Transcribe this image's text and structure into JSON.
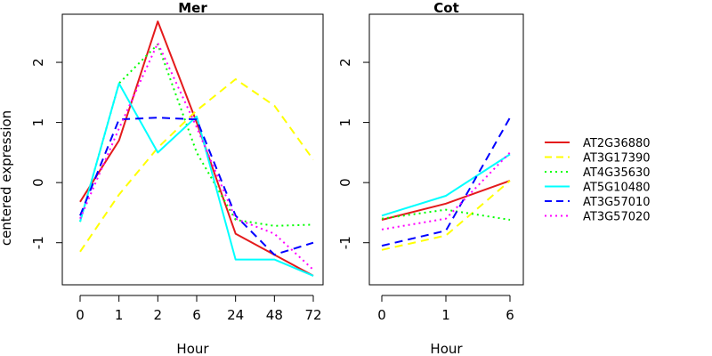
{
  "chart_data": [
    {
      "type": "line",
      "title": "Mer",
      "xlabel": "Hour",
      "ylabel": "centered expression",
      "categories": [
        "0",
        "1",
        "2",
        "6",
        "24",
        "48",
        "72"
      ],
      "ylim": [
        -1.7,
        2.8
      ],
      "yticks": [
        -1,
        0,
        1,
        2
      ],
      "grid": false,
      "series": [
        {
          "name": "AT2G36880",
          "color": "#e41a1c",
          "dash": "solid",
          "values": [
            -0.32,
            0.7,
            2.68,
            1.0,
            -0.85,
            -1.2,
            -1.55
          ]
        },
        {
          "name": "AT3G17390",
          "color": "#ffff00",
          "dash": "dashed",
          "values": [
            -1.15,
            -0.2,
            0.58,
            1.2,
            1.72,
            1.28,
            0.38
          ]
        },
        {
          "name": "AT4G35630",
          "color": "#00ff00",
          "dash": "dotted",
          "values": [
            -0.65,
            1.65,
            2.3,
            0.5,
            -0.62,
            -0.72,
            -0.7
          ]
        },
        {
          "name": "AT5G10480",
          "color": "#00ffff",
          "dash": "solid",
          "values": [
            -0.65,
            1.65,
            0.5,
            1.1,
            -1.28,
            -1.28,
            -1.55
          ]
        },
        {
          "name": "AT3G57010",
          "color": "#0000ff",
          "dash": "dashed",
          "values": [
            -0.55,
            1.05,
            1.08,
            1.05,
            -0.55,
            -1.2,
            -1.0
          ]
        },
        {
          "name": "AT3G57020",
          "color": "#ff00ff",
          "dash": "dotted",
          "values": [
            -0.6,
            0.9,
            2.32,
            0.92,
            -0.6,
            -0.85,
            -1.45
          ]
        }
      ]
    },
    {
      "type": "line",
      "title": "Cot",
      "xlabel": "Hour",
      "ylabel": "",
      "categories": [
        "0",
        "1",
        "6"
      ],
      "ylim": [
        -1.7,
        2.8
      ],
      "yticks": [
        -1,
        0,
        1,
        2
      ],
      "grid": false,
      "series": [
        {
          "name": "AT2G36880",
          "color": "#e41a1c",
          "dash": "solid",
          "values": [
            -0.62,
            -0.35,
            0.03
          ]
        },
        {
          "name": "AT3G17390",
          "color": "#ffff00",
          "dash": "dashed",
          "values": [
            -1.12,
            -0.88,
            0.03
          ]
        },
        {
          "name": "AT4G35630",
          "color": "#00ff00",
          "dash": "dotted",
          "values": [
            -0.6,
            -0.45,
            -0.62
          ]
        },
        {
          "name": "AT5G10480",
          "color": "#00ffff",
          "dash": "solid",
          "values": [
            -0.55,
            -0.22,
            0.47
          ]
        },
        {
          "name": "AT3G57010",
          "color": "#0000ff",
          "dash": "dashed",
          "values": [
            -1.05,
            -0.8,
            1.08
          ]
        },
        {
          "name": "AT3G57020",
          "color": "#ff00ff",
          "dash": "dotted",
          "values": [
            -0.78,
            -0.6,
            0.5
          ]
        }
      ]
    }
  ],
  "legend": {
    "placement": "right",
    "entries": [
      "AT2G36880",
      "AT3G17390",
      "AT4G35630",
      "AT5G10480",
      "AT3G57010",
      "AT3G57020"
    ]
  }
}
